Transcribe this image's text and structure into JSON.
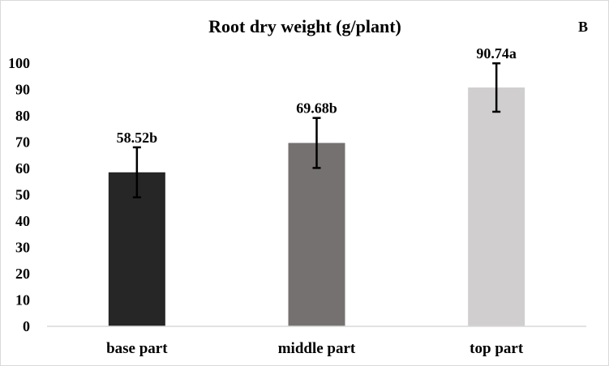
{
  "chart_data": {
    "type": "bar",
    "title": "Root dry weight (g/plant)",
    "panel_label": "B",
    "xlabel": "",
    "ylabel": "",
    "categories": [
      "base part",
      "middle part",
      "top part"
    ],
    "values": [
      58.52,
      69.68,
      90.74
    ],
    "data_labels": [
      "58.52b",
      "69.68b",
      "90.74a"
    ],
    "error_bars": [
      9.5,
      9.5,
      9.2
    ],
    "colors": [
      "#262626",
      "#767171",
      "#d0cece"
    ],
    "ylim": [
      0,
      100
    ],
    "yticks": [
      0,
      10,
      20,
      30,
      40,
      50,
      60,
      70,
      80,
      90,
      100
    ],
    "grid": false,
    "legend": "none"
  }
}
